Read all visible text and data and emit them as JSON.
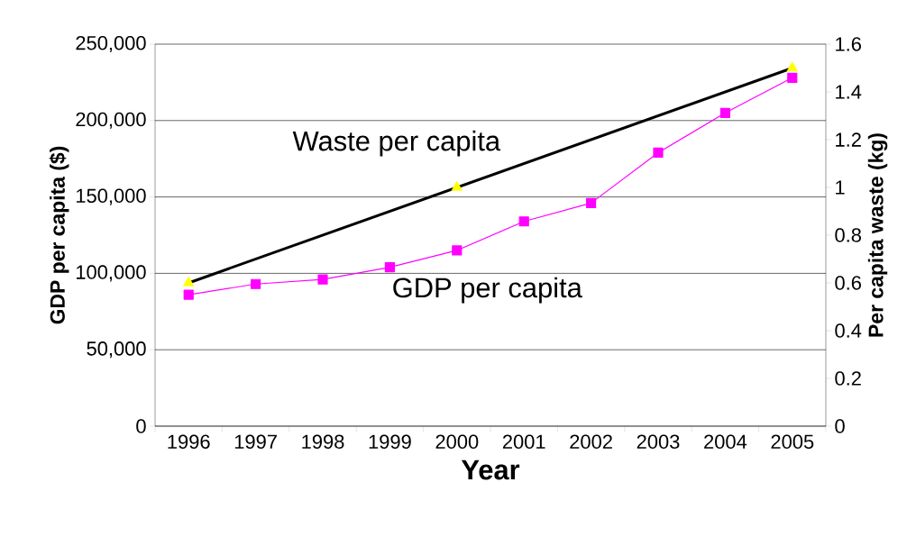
{
  "chart_data": {
    "type": "line",
    "xlabel": "Year",
    "ylabel": "GDP per capita ($)",
    "y2label": "Per capita waste (kg)",
    "x": [
      1996,
      1997,
      1998,
      1999,
      2000,
      2001,
      2002,
      2003,
      2004,
      2005
    ],
    "xlim": [
      1995.5,
      2005.5
    ],
    "xticks": [
      1996,
      1997,
      1998,
      1999,
      2000,
      2001,
      2002,
      2003,
      2004,
      2005
    ],
    "ylim": [
      0,
      250000
    ],
    "yticks": [
      0,
      {
        "value": 50000,
        "label": "50,000"
      },
      {
        "value": 100000,
        "label": "100,000"
      },
      {
        "value": 150000,
        "label": "150,000"
      },
      {
        "value": 200000,
        "label": "200,000"
      },
      {
        "value": 250000,
        "label": "250,000"
      }
    ],
    "y2lim": [
      0,
      1.6
    ],
    "y2ticks": [
      0,
      0.2,
      0.4,
      0.6,
      0.8,
      1,
      1.2,
      1.4,
      1.6
    ],
    "grid": "y",
    "series": [
      {
        "color": "#ff00ff",
        "marker": "square",
        "values": [
          86000,
          93000,
          96000,
          104000,
          115000,
          134000,
          146000,
          179000,
          205000,
          228000
        ]
      },
      {
        "type": "scatter",
        "axis": "y2",
        "color": "#ffff00",
        "marker": "triangle",
        "x": [
          1996,
          2000,
          2005
        ],
        "values": [
          0.6,
          1.0,
          1.5
        ]
      },
      {
        "type": "line",
        "axis": "y2",
        "color": "#000000",
        "marker": "none",
        "x": [
          1996,
          2005
        ],
        "values": [
          0.6,
          1.5
        ]
      }
    ],
    "annotations": [
      "Waste per capita",
      "GDP per capita"
    ]
  }
}
